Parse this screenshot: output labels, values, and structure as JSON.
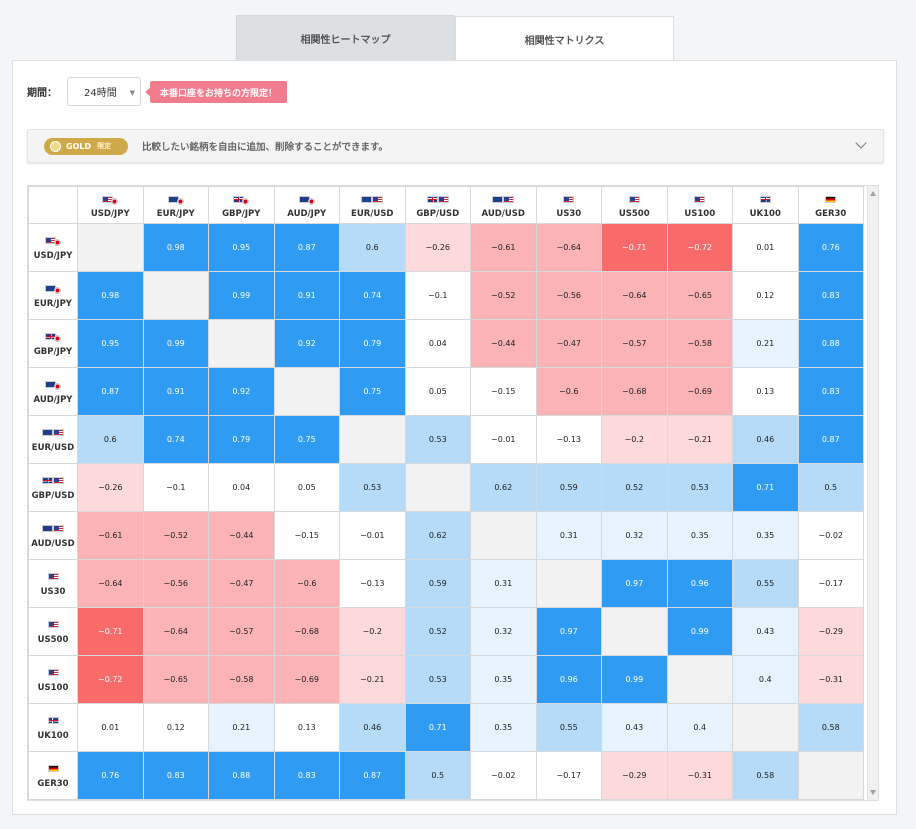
{
  "tabs": [
    {
      "label": "相関性ヒートマップ",
      "active": false
    },
    {
      "label": "相関性マトリクス",
      "active": true
    }
  ],
  "period": {
    "label": "期間：",
    "value": "24時間"
  },
  "promo": "本番口座をお持ちの方限定！",
  "gold": {
    "badge": "GOLD",
    "badge_sub": "限定",
    "text": "比較したい銘柄を自由に追加、削除することができます。"
  },
  "instruments": [
    {
      "name": "USD/JPY",
      "flags": [
        "us",
        "jp"
      ],
      "index": false
    },
    {
      "name": "EUR/JPY",
      "flags": [
        "eu",
        "jp"
      ],
      "index": false
    },
    {
      "name": "GBP/JPY",
      "flags": [
        "gb",
        "jp"
      ],
      "index": false
    },
    {
      "name": "AUD/JPY",
      "flags": [
        "au",
        "jp"
      ],
      "index": false
    },
    {
      "name": "EUR/USD",
      "flags": [
        "eu",
        "us"
      ],
      "index": false
    },
    {
      "name": "GBP/USD",
      "flags": [
        "gb",
        "us"
      ],
      "index": false
    },
    {
      "name": "AUD/USD",
      "flags": [
        "au",
        "us"
      ],
      "index": false
    },
    {
      "name": "US30",
      "flags": [
        "us"
      ],
      "index": true
    },
    {
      "name": "US500",
      "flags": [
        "us"
      ],
      "index": true
    },
    {
      "name": "US100",
      "flags": [
        "us"
      ],
      "index": true
    },
    {
      "name": "UK100",
      "flags": [
        "gb"
      ],
      "index": true
    },
    {
      "name": "GER30",
      "flags": [
        "de"
      ],
      "index": true
    }
  ],
  "matrix": [
    [
      null,
      0.98,
      0.95,
      0.87,
      0.6,
      -0.26,
      -0.61,
      -0.64,
      -0.71,
      -0.72,
      0.01,
      0.76
    ],
    [
      0.98,
      null,
      0.99,
      0.91,
      0.74,
      -0.1,
      -0.52,
      -0.56,
      -0.64,
      -0.65,
      0.12,
      0.83
    ],
    [
      0.95,
      0.99,
      null,
      0.92,
      0.79,
      0.04,
      -0.44,
      -0.47,
      -0.57,
      -0.58,
      0.21,
      0.88
    ],
    [
      0.87,
      0.91,
      0.92,
      null,
      0.75,
      0.05,
      -0.15,
      -0.6,
      -0.68,
      -0.69,
      0.13,
      0.83
    ],
    [
      0.6,
      0.74,
      0.79,
      0.75,
      null,
      0.53,
      -0.01,
      -0.13,
      -0.2,
      -0.21,
      0.46,
      0.87
    ],
    [
      -0.26,
      -0.1,
      0.04,
      0.05,
      0.53,
      null,
      0.62,
      0.59,
      0.52,
      0.53,
      0.71,
      0.5
    ],
    [
      -0.61,
      -0.52,
      -0.44,
      -0.15,
      -0.01,
      0.62,
      null,
      0.31,
      0.32,
      0.35,
      0.35,
      -0.02
    ],
    [
      -0.64,
      -0.56,
      -0.47,
      -0.6,
      -0.13,
      0.59,
      0.31,
      null,
      0.97,
      0.96,
      0.55,
      -0.17
    ],
    [
      -0.71,
      -0.64,
      -0.57,
      -0.68,
      -0.2,
      0.52,
      0.32,
      0.97,
      null,
      0.99,
      0.43,
      -0.29
    ],
    [
      -0.72,
      -0.65,
      -0.58,
      -0.69,
      -0.21,
      0.53,
      0.35,
      0.96,
      0.99,
      null,
      0.4,
      -0.31
    ],
    [
      0.01,
      0.12,
      0.21,
      0.13,
      0.46,
      0.71,
      0.35,
      0.55,
      0.43,
      0.4,
      null,
      0.58
    ],
    [
      0.76,
      0.83,
      0.88,
      0.83,
      0.87,
      0.5,
      -0.02,
      -0.17,
      -0.29,
      -0.31,
      0.58,
      null
    ]
  ],
  "display": [
    [
      "",
      "0.98",
      "0.95",
      "0.87",
      "0.6",
      "−0.26",
      "−0.61",
      "−0.64",
      "−0.71",
      "−0.72",
      "0.01",
      "0.76"
    ],
    [
      "0.98",
      "",
      "0.99",
      "0.91",
      "0.74",
      "−0.1",
      "−0.52",
      "−0.56",
      "−0.64",
      "−0.65",
      "0.12",
      "0.83"
    ],
    [
      "0.95",
      "0.99",
      "",
      "0.92",
      "0.79",
      "0.04",
      "−0.44",
      "−0.47",
      "−0.57",
      "−0.58",
      "0.21",
      "0.88"
    ],
    [
      "0.87",
      "0.91",
      "0.92",
      "",
      "0.75",
      "0.05",
      "−0.15",
      "−0.6",
      "−0.68",
      "−0.69",
      "0.13",
      "0.83"
    ],
    [
      "0.6",
      "0.74",
      "0.79",
      "0.75",
      "",
      "0.53",
      "−0.01",
      "−0.13",
      "−0.2",
      "−0.21",
      "0.46",
      "0.87"
    ],
    [
      "−0.26",
      "−0.1",
      "0.04",
      "0.05",
      "0.53",
      "",
      "0.62",
      "0.59",
      "0.52",
      "0.53",
      "0.71",
      "0.5"
    ],
    [
      "−0.61",
      "−0.52",
      "−0.44",
      "−0.15",
      "−0.01",
      "0.62",
      "",
      "0.31",
      "0.32",
      "0.35",
      "0.35",
      "−0.02"
    ],
    [
      "−0.64",
      "−0.56",
      "−0.47",
      "−0.6",
      "−0.13",
      "0.59",
      "0.31",
      "",
      "0.97",
      "0.96",
      "0.55",
      "−0.17"
    ],
    [
      "−0.71",
      "−0.64",
      "−0.57",
      "−0.68",
      "−0.2",
      "0.52",
      "0.32",
      "0.97",
      "",
      "0.99",
      "0.43",
      "−0.29"
    ],
    [
      "−0.72",
      "−0.65",
      "−0.58",
      "−0.69",
      "−0.21",
      "0.53",
      "0.35",
      "0.96",
      "0.99",
      "",
      "0.4",
      "−0.31"
    ],
    [
      "0.01",
      "0.12",
      "0.21",
      "0.13",
      "0.46",
      "0.71",
      "0.35",
      "0.55",
      "0.43",
      "0.4",
      "",
      "0.58"
    ],
    [
      "0.76",
      "0.83",
      "0.88",
      "0.83",
      "0.87",
      "0.5",
      "−0.02",
      "−0.17",
      "−0.29",
      "−0.31",
      "0.58",
      ""
    ]
  ],
  "colors": {
    "strong_positive": "#2f9bf2",
    "moderate_positive": "#b5dbf9",
    "weak_positive": "#e6f3fd",
    "neutral": "#ffffff",
    "weak_negative": "#fdd9dc",
    "moderate_negative": "#fcb3b5",
    "strong_negative": "#f96b6b",
    "diagonal": "#f2f2f2"
  }
}
